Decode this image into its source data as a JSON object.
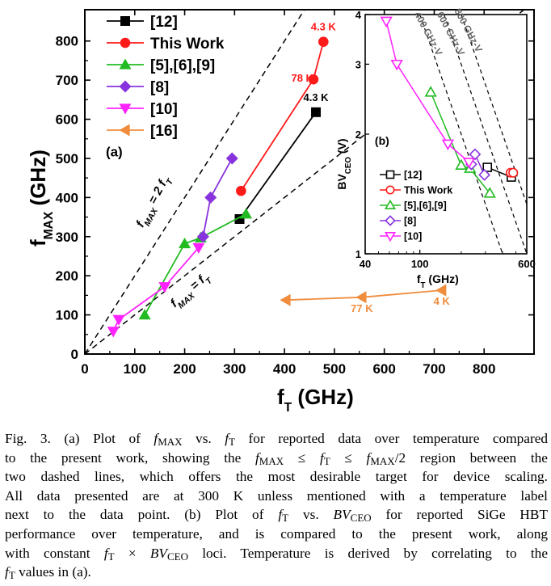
{
  "chart_data": [
    {
      "type": "scatter",
      "panel_label": "(a)",
      "xlabel": "f",
      "xlabel_sub": "T",
      "xlabel_unit": "(GHz)",
      "ylabel": "f",
      "ylabel_sub": "MAX",
      "ylabel_unit": "(GHz)",
      "xlim": [
        0,
        900
      ],
      "ylim": [
        0,
        880
      ],
      "xticks": [
        0,
        100,
        200,
        300,
        400,
        500,
        600,
        700,
        800
      ],
      "yticks": [
        0,
        100,
        200,
        300,
        400,
        500,
        600,
        700,
        800
      ],
      "reference_lines": [
        {
          "name": "fmax-eq-2ft",
          "label": "f",
          "label_sub": "MAX",
          "label_mid": " = 2 f",
          "label_end": "T",
          "slope": 2
        },
        {
          "name": "fmax-eq-ft",
          "label": "f",
          "label_sub": "MAX",
          "label_mid": " = f",
          "label_end": "T",
          "slope": 1
        }
      ],
      "series": [
        {
          "name": "[12]",
          "color": "#000000",
          "marker": "square",
          "x": [
            310,
            463
          ],
          "y": [
            345,
            618
          ],
          "labels": [
            "",
            "4.3 K"
          ]
        },
        {
          "name": "This Work",
          "color": "#ff1a1a",
          "marker": "circle",
          "x": [
            313,
            458,
            478
          ],
          "y": [
            417,
            702,
            798
          ],
          "labels": [
            "",
            "78 K",
            "4.3 K"
          ]
        },
        {
          "name": "[5],[6],[9]",
          "color": "#22bb22",
          "marker": "triangle-up",
          "x": [
            120,
            200,
            232,
            323
          ],
          "y": [
            100,
            282,
            297,
            358
          ],
          "labels": [
            "",
            "",
            "",
            ""
          ]
        },
        {
          "name": "[8]",
          "color": "#8833dd",
          "marker": "diamond",
          "x": [
            237,
            252,
            295
          ],
          "y": [
            300,
            400,
            500
          ],
          "labels": [
            "",
            "",
            ""
          ]
        },
        {
          "name": "[10]",
          "color": "#ff22ff",
          "marker": "triangle-down",
          "x": [
            57,
            68,
            160,
            228
          ],
          "y": [
            58,
            88,
            172,
            272
          ],
          "labels": [
            "",
            "",
            "",
            ""
          ]
        },
        {
          "name": "[16]",
          "color": "#f08c3c",
          "marker": "triangle-left",
          "x": [
            403,
            555,
            715
          ],
          "y": [
            138,
            145,
            163
          ],
          "labels": [
            "",
            "77 K",
            "4 K"
          ]
        }
      ]
    },
    {
      "type": "scatter",
      "panel_label": "(b)",
      "xlabel": "f",
      "xlabel_sub": "T",
      "xlabel_unit": "(GHz)",
      "ylabel": "BV",
      "ylabel_sub": "CEO",
      "ylabel_unit": "(V)",
      "xscale": "log",
      "yscale": "log",
      "xlim": [
        40,
        600
      ],
      "ylim": [
        1,
        4
      ],
      "xticks": [
        40,
        100,
        600
      ],
      "yticks": [
        1,
        2,
        3,
        4
      ],
      "reference_lines": [
        {
          "name": "400-ghz-v",
          "label": "400 GHz-V",
          "product": 400
        },
        {
          "name": "600-ghz-v",
          "label": "600 GHz-V",
          "product": 600
        },
        {
          "name": "800-ghz-v",
          "label": "800 GHz-V",
          "product": 800
        }
      ],
      "series": [
        {
          "name": "[12]",
          "color": "#000000",
          "marker": "square-open",
          "x": [
            310,
            463
          ],
          "y": [
            1.65,
            1.56
          ]
        },
        {
          "name": "This Work",
          "color": "#ff1a1a",
          "marker": "circle-open",
          "x": [
            458,
            478
          ],
          "y": [
            1.6,
            1.6
          ]
        },
        {
          "name": "[5],[6],[9]",
          "color": "#22bb22",
          "marker": "triangle-up-open",
          "x": [
            120,
            200,
            232,
            323
          ],
          "y": [
            2.55,
            1.67,
            1.64,
            1.42
          ]
        },
        {
          "name": "[8]",
          "color": "#8833dd",
          "marker": "diamond-open",
          "x": [
            237,
            252,
            295
          ],
          "y": [
            1.68,
            1.78,
            1.58
          ]
        },
        {
          "name": "[10]",
          "color": "#ff22ff",
          "marker": "triangle-down-open",
          "x": [
            57,
            68,
            160,
            228
          ],
          "y": [
            3.85,
            3.0,
            1.89,
            1.7
          ]
        }
      ]
    }
  ],
  "caption": {
    "lines": [
      [
        "Fig. 3.    (a) Plot of ",
        "f",
        "MAX",
        " vs. ",
        "f",
        "T",
        " for reported data over temperature compared"
      ],
      [
        "to the present work, showing the ",
        "f",
        "MAX",
        " ≤ ",
        "f",
        "T",
        " ≤ ",
        "f",
        "MAX",
        "/2 region between the"
      ],
      [
        "two dashed lines, which offers the most desirable target for device scaling."
      ],
      [
        "All data presented are at 300 K unless mentioned with a temperature label"
      ],
      [
        "next to the data point.  (b) Plot of ",
        "f",
        "T",
        " vs. ",
        "BV",
        "CEO",
        " for reported SiGe HBT"
      ],
      [
        "performance over temperature, and is compared to the present work, along"
      ],
      [
        "with constant ",
        "f",
        "T",
        " × ",
        "BV",
        "CEO",
        " loci. Temperature is derived by correlating to the"
      ],
      [
        "f",
        "T",
        " values in (a)."
      ]
    ]
  }
}
